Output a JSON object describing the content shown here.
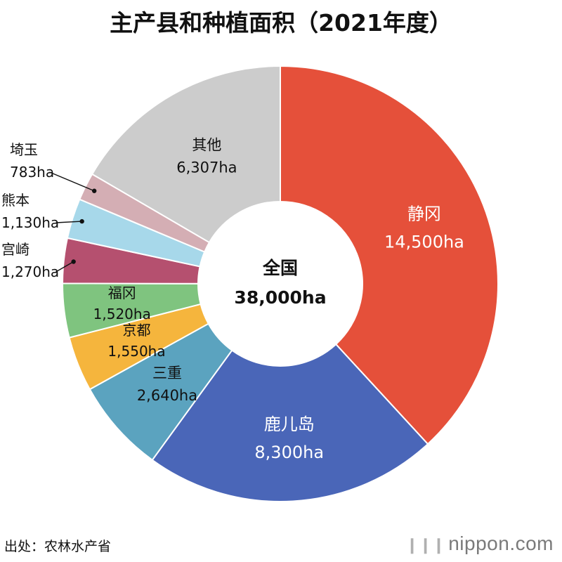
{
  "chart_data": {
    "type": "pie",
    "donut": true,
    "title": "主产县和种植面积（2021年度）",
    "center_label": "全国",
    "total": 38000,
    "total_label": "38,000ha",
    "unit": "ha",
    "slices": [
      {
        "name": "静冈",
        "value": 14500,
        "label": "14,500ha",
        "color": "#e5503a",
        "text_color": "#ffffff",
        "placement": "inside"
      },
      {
        "name": "鹿儿岛",
        "value": 8300,
        "label": "8,300ha",
        "color": "#4a66b8",
        "text_color": "#ffffff",
        "placement": "inside"
      },
      {
        "name": "三重",
        "value": 2640,
        "label": "2,640ha",
        "color": "#5ba3bf",
        "text_color": "#111111",
        "placement": "inside"
      },
      {
        "name": "京都",
        "value": 1550,
        "label": "1,550ha",
        "color": "#f5b53d",
        "text_color": "#111111",
        "placement": "inside"
      },
      {
        "name": "福冈",
        "value": 1520,
        "label": "1,520ha",
        "color": "#7fc47f",
        "text_color": "#111111",
        "placement": "inside"
      },
      {
        "name": "宫崎",
        "value": 1270,
        "label": "1,270ha",
        "color": "#b5506f",
        "text_color": "#111111",
        "placement": "outside"
      },
      {
        "name": "熊本",
        "value": 1130,
        "label": "1,130ha",
        "color": "#a7d8ea",
        "text_color": "#111111",
        "placement": "outside"
      },
      {
        "name": "埼玉",
        "value": 783,
        "label": "783ha",
        "color": "#d4aeb4",
        "text_color": "#111111",
        "placement": "outside"
      },
      {
        "name": "其他",
        "value": 6307,
        "label": "6,307ha",
        "color": "#cccccc",
        "text_color": "#111111",
        "placement": "inside"
      }
    ]
  },
  "footer": {
    "source": "出处：农林水产省",
    "brand": "nippon.com",
    "brand_mark": "❙❙❙"
  }
}
